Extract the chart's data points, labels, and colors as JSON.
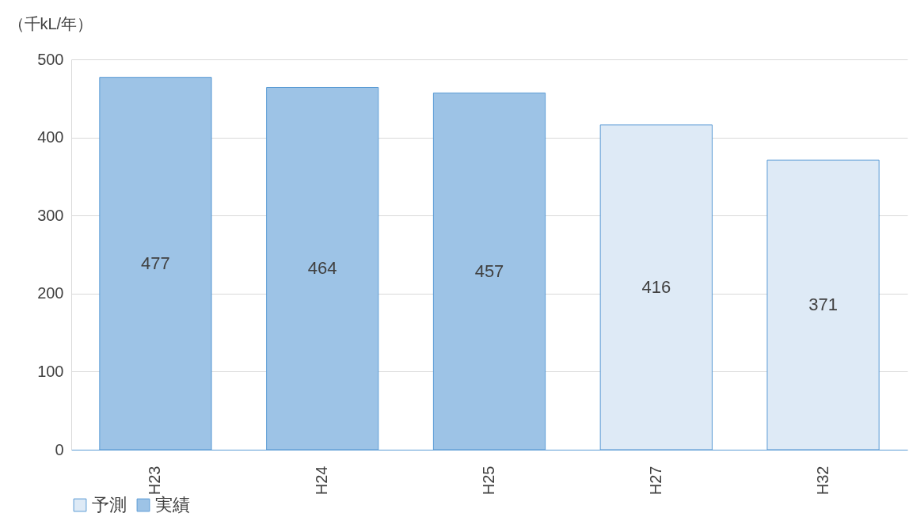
{
  "chart_data": {
    "type": "bar",
    "ylabel": "（千kL/年）",
    "categories": [
      "H23",
      "H24",
      "H25",
      "H27",
      "H32"
    ],
    "series": [
      {
        "name": "予測",
        "color": "#deeaf6",
        "values": [
          null,
          null,
          null,
          416,
          371
        ]
      },
      {
        "name": "実績",
        "color": "#9dc3e6",
        "values": [
          477,
          464,
          457,
          null,
          null
        ]
      }
    ],
    "ylim": [
      0,
      500
    ],
    "yticks": [
      0,
      100,
      200,
      300,
      400,
      500
    ],
    "grid": "y",
    "legend": "bottom",
    "data_labels": true
  }
}
